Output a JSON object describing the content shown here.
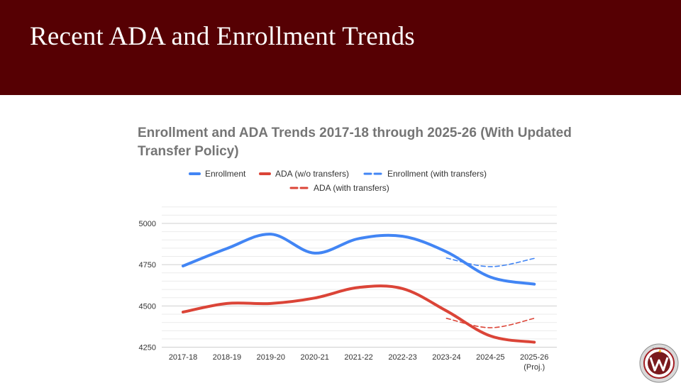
{
  "slide": {
    "title": "Recent ADA and Enrollment Trends",
    "colors": {
      "header_bg": "#560003",
      "title_text": "#ffffff"
    }
  },
  "chart_data": {
    "type": "line",
    "title": "Enrollment and ADA Trends 2017-18 through 2025-26 (With Updated Transfer Policy)",
    "xlabel": "",
    "ylabel": "",
    "categories": [
      "2017-18",
      "2018-19",
      "2019-20",
      "2020-21",
      "2021-22",
      "2022-23",
      "2023-24",
      "2024-25",
      "2025-26"
    ],
    "category_sublabels": [
      "",
      "",
      "",
      "",
      "",
      "",
      "",
      "",
      "(Proj.)"
    ],
    "ylim": [
      4250,
      5000
    ],
    "yticks": [
      4250,
      4500,
      4750,
      5000
    ],
    "grid": true,
    "legend_position": "top",
    "series": [
      {
        "name": "Enrollment",
        "style": "solid",
        "color": "#4285f4",
        "values": [
          4742,
          4848,
          4935,
          4820,
          4908,
          4922,
          4828,
          4675,
          4632
        ]
      },
      {
        "name": "ADA (w/o transfers)",
        "style": "solid",
        "color": "#db4437",
        "values": [
          4463,
          4515,
          4515,
          4548,
          4612,
          4605,
          4470,
          4318,
          4280
        ]
      },
      {
        "name": "Enrollment (with transfers)",
        "style": "dashed",
        "color": "#4285f4",
        "values": [
          null,
          null,
          null,
          null,
          null,
          null,
          4790,
          4738,
          4788
        ]
      },
      {
        "name": "ADA (with transfers)",
        "style": "dashed",
        "color": "#db4437",
        "values": [
          null,
          null,
          null,
          null,
          null,
          null,
          4425,
          4368,
          4425
        ]
      }
    ]
  },
  "logo": {
    "text": "DISTRICT"
  }
}
